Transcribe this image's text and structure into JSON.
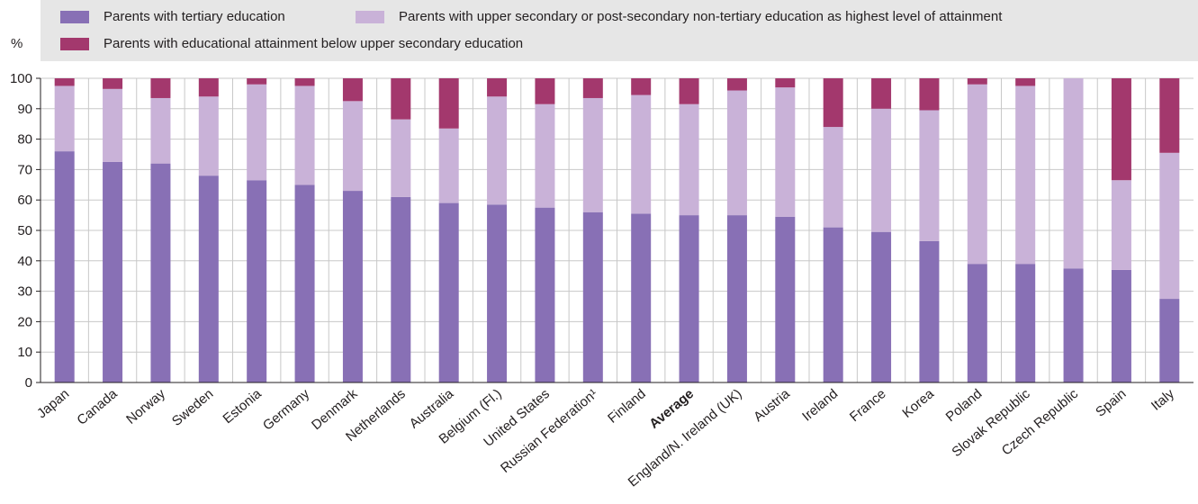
{
  "chart_data": {
    "type": "bar",
    "stacked": true,
    "ylabel": "%",
    "ylim": [
      0,
      100
    ],
    "yticks": [
      0,
      10,
      20,
      30,
      40,
      50,
      60,
      70,
      80,
      90,
      100
    ],
    "grid": true,
    "legend_position": "top",
    "highlight_category": "Average",
    "categories": [
      "Japan",
      "Canada",
      "Norway",
      "Sweden",
      "Estonia",
      "Germany",
      "Denmark",
      "Netherlands",
      "Australia",
      "Belgium (Fl.)",
      "United States",
      "Russian Federation¹",
      "Finland",
      "Average",
      "England/N. Ireland (UK)",
      "Austria",
      "Ireland",
      "France",
      "Korea",
      "Poland",
      "Slovak Republic",
      "Czech Republic",
      "Spain",
      "Italy"
    ],
    "series": [
      {
        "name": "Parents with tertiary education",
        "color": "#8870b5",
        "values": [
          76,
          72.5,
          72,
          68,
          66.5,
          65,
          63,
          61,
          59,
          58.5,
          57.5,
          56,
          55.5,
          55,
          55,
          54.5,
          51,
          49.5,
          46.5,
          39,
          39,
          37.5,
          37,
          27.5
        ]
      },
      {
        "name": "Parents with upper secondary or post-secondary non-tertiary education as highest level of attainment",
        "color": "#c9b2d8",
        "values": [
          21.5,
          24,
          21.5,
          26,
          31.5,
          32.5,
          29.5,
          25.5,
          24.5,
          35.5,
          34,
          37.5,
          39,
          36.5,
          41,
          42.5,
          33,
          40.5,
          43,
          59,
          58.5,
          62.5,
          29.5,
          48
        ]
      },
      {
        "name": "Parents with educational attainment below upper secondary education",
        "color": "#a3386d",
        "values": [
          2.5,
          3.5,
          6.5,
          6,
          2,
          2.5,
          7.5,
          13.5,
          16.5,
          6,
          8.5,
          6.5,
          5.5,
          8.5,
          4,
          3,
          16,
          10,
          10.5,
          2,
          2.5,
          0,
          33.5,
          24.5
        ]
      }
    ]
  }
}
